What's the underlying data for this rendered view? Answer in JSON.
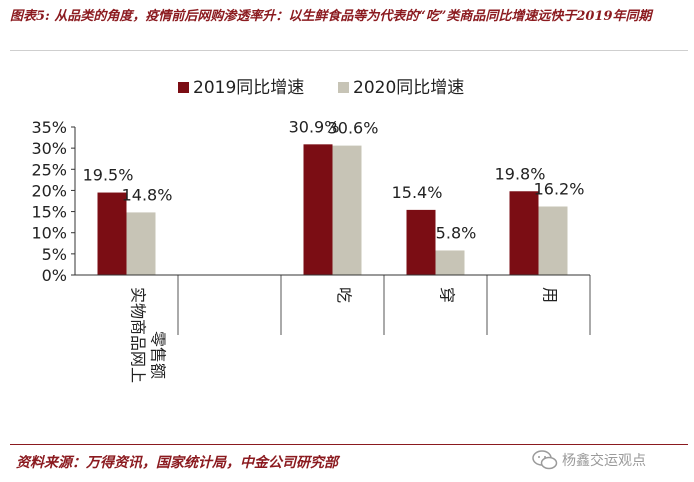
{
  "header": {
    "title": "图表5: 从品类的角度，疫情前后网购渗透率升：以生鲜食品等为代表的“吃”类商品同比增速远快于2019年同期"
  },
  "footer": {
    "source": "资料来源：万得资讯，国家统计局，中金公司研究部",
    "watermark": "杨鑫交运观点"
  },
  "colors": {
    "title": "#8b1a1f",
    "series_2019": "#7b0d14",
    "series_2020": "#c7c4b6"
  },
  "icons": {
    "watermark_icon": "wechat-icon"
  },
  "chart_data": {
    "type": "bar",
    "categories": [
      "实物商品网上零售额",
      "",
      "吃",
      "穿",
      "用"
    ],
    "series": [
      {
        "name": "2019同比增速",
        "values": [
          19.5,
          null,
          30.9,
          15.4,
          19.8
        ],
        "labels": [
          "19.5%",
          "",
          "30.9%",
          "15.4%",
          "19.8%"
        ]
      },
      {
        "name": "2020同比增速",
        "values": [
          14.8,
          null,
          30.6,
          5.8,
          16.2
        ],
        "labels": [
          "14.8%",
          "",
          "30.6%",
          "5.8%",
          "16.2%"
        ]
      }
    ],
    "yticks": [
      "0%",
      "5%",
      "10%",
      "15%",
      "20%",
      "25%",
      "30%",
      "35%"
    ],
    "ylim": [
      0,
      35
    ],
    "legend_position": "top",
    "grid": false
  }
}
